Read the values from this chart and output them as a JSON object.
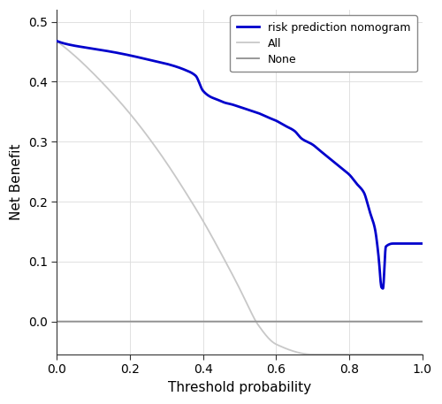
{
  "title": "",
  "xlabel": "Threshold probability",
  "ylabel": "Net Benefit",
  "xlim": [
    0.0,
    1.0
  ],
  "ylim": [
    -0.055,
    0.52
  ],
  "yticks": [
    0.0,
    0.1,
    0.2,
    0.3,
    0.4,
    0.5
  ],
  "xticks": [
    0.0,
    0.2,
    0.4,
    0.6,
    0.8,
    1.0
  ],
  "nomogram_color": "#0000CC",
  "all_color": "#C8C8C8",
  "none_color": "#909090",
  "background_color": "#FFFFFF",
  "legend_labels": [
    "risk prediction nomogram",
    "All",
    "None"
  ],
  "nom_x": [
    0.0,
    0.02,
    0.05,
    0.08,
    0.1,
    0.15,
    0.2,
    0.25,
    0.3,
    0.35,
    0.38,
    0.4,
    0.42,
    0.44,
    0.46,
    0.48,
    0.5,
    0.52,
    0.55,
    0.58,
    0.6,
    0.62,
    0.65,
    0.67,
    0.7,
    0.72,
    0.75,
    0.78,
    0.8,
    0.82,
    0.84,
    0.855,
    0.87,
    0.878,
    0.882,
    0.885,
    0.888,
    0.892,
    0.9,
    0.92,
    0.95,
    1.0
  ],
  "nom_y": [
    0.468,
    0.464,
    0.46,
    0.457,
    0.455,
    0.45,
    0.444,
    0.437,
    0.43,
    0.42,
    0.41,
    0.385,
    0.375,
    0.37,
    0.365,
    0.362,
    0.358,
    0.354,
    0.348,
    0.34,
    0.335,
    0.328,
    0.318,
    0.305,
    0.295,
    0.285,
    0.27,
    0.255,
    0.245,
    0.23,
    0.215,
    0.185,
    0.155,
    0.12,
    0.095,
    0.07,
    0.057,
    0.055,
    0.125,
    0.13,
    0.13,
    0.13
  ],
  "all_x": [
    0.0,
    0.05,
    0.1,
    0.15,
    0.2,
    0.25,
    0.3,
    0.35,
    0.4,
    0.45,
    0.5,
    0.52,
    0.55,
    0.6,
    0.7,
    0.8,
    0.9,
    1.0
  ],
  "all_y": [
    0.468,
    0.443,
    0.414,
    0.382,
    0.347,
    0.308,
    0.265,
    0.218,
    0.168,
    0.113,
    0.055,
    0.03,
    -0.005,
    -0.038,
    -0.055,
    -0.055,
    -0.055,
    -0.055
  ]
}
